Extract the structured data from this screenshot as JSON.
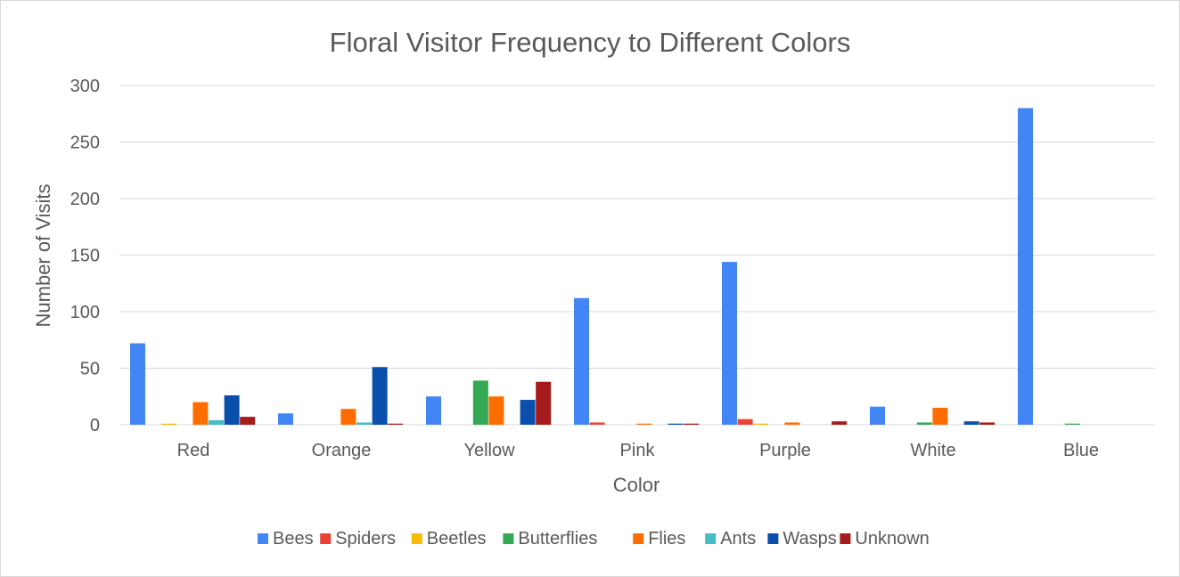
{
  "chart_data": {
    "type": "bar",
    "title": "Floral Visitor Frequency to Different Colors",
    "xlabel": "Color",
    "ylabel": "Number of Visits",
    "ylim": [
      0,
      300
    ],
    "yticks": [
      0,
      50,
      100,
      150,
      200,
      250,
      300
    ],
    "grid": true,
    "legend_position": "bottom",
    "categories": [
      "Red",
      "Orange",
      "Yellow",
      "Pink",
      "Purple",
      "White",
      "Blue"
    ],
    "series": [
      {
        "name": "Bees",
        "color": "#4285f4",
        "values": [
          72,
          10,
          25,
          112,
          144,
          16,
          280
        ]
      },
      {
        "name": "Spiders",
        "color": "#ea4335",
        "values": [
          0,
          0,
          0,
          2,
          5,
          0,
          0
        ]
      },
      {
        "name": "Beetles",
        "color": "#fbbc04",
        "values": [
          1,
          0,
          0,
          0,
          1,
          0,
          0
        ]
      },
      {
        "name": "Butterflies",
        "color": "#34a853",
        "values": [
          0,
          0,
          39,
          0,
          0,
          2,
          1
        ]
      },
      {
        "name": "Flies",
        "color": "#ff6d01",
        "values": [
          20,
          14,
          25,
          1,
          2,
          15,
          0
        ]
      },
      {
        "name": "Ants",
        "color": "#46bdc6",
        "values": [
          4,
          2,
          0,
          0,
          0,
          0,
          0
        ]
      },
      {
        "name": "Wasps",
        "color": "#0b4fad",
        "values": [
          26,
          51,
          22,
          1,
          0,
          3,
          0
        ]
      },
      {
        "name": "Unknown",
        "color": "#a61c1c",
        "values": [
          7,
          1,
          38,
          1,
          3,
          2,
          0
        ]
      }
    ]
  }
}
